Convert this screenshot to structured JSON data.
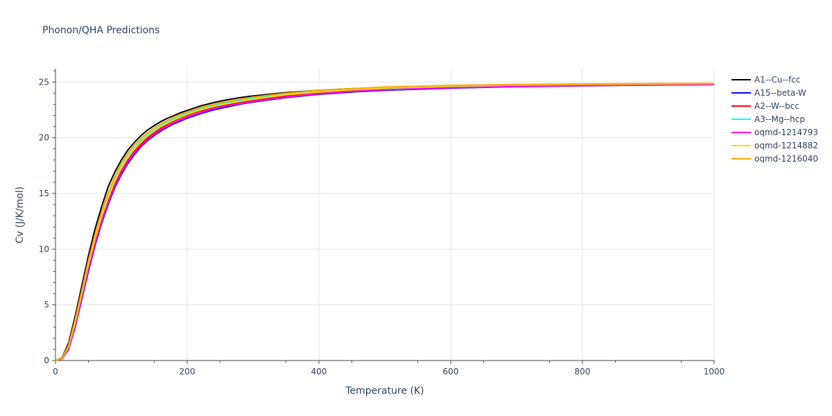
{
  "chart_data": {
    "type": "line",
    "title": "Phonon/QHA Predictions",
    "xlabel": "Temperature (K)",
    "ylabel": "Cv (J/K/mol)",
    "xlim": [
      0,
      1000
    ],
    "ylim": [
      0,
      26.2
    ],
    "x_ticks": [
      0,
      200,
      400,
      600,
      800,
      1000
    ],
    "y_ticks": [
      0,
      5,
      10,
      15,
      20,
      25
    ],
    "grid": true,
    "legend_position": "right",
    "x": [
      0,
      10,
      20,
      30,
      40,
      50,
      60,
      70,
      80,
      90,
      100,
      110,
      120,
      130,
      140,
      150,
      160,
      170,
      180,
      190,
      200,
      220,
      240,
      260,
      280,
      300,
      350,
      400,
      450,
      500,
      600,
      700,
      800,
      900,
      1000
    ],
    "series": [
      {
        "name": "A1--Cu--fcc",
        "color": "#000000",
        "values": [
          0,
          0.25,
          1.6,
          4.0,
          6.7,
          9.4,
          11.8,
          13.8,
          15.6,
          16.9,
          18.0,
          18.9,
          19.6,
          20.2,
          20.7,
          21.1,
          21.45,
          21.75,
          22.0,
          22.25,
          22.45,
          22.85,
          23.15,
          23.4,
          23.6,
          23.75,
          24.05,
          24.25,
          24.4,
          24.5,
          24.62,
          24.7,
          24.74,
          24.78,
          24.8
        ]
      },
      {
        "name": "A15--beta-W",
        "color": "#0000ff",
        "values": [
          0,
          0.15,
          1.0,
          3.0,
          5.5,
          8.0,
          10.3,
          12.3,
          14.0,
          15.5,
          16.7,
          17.7,
          18.5,
          19.2,
          19.75,
          20.2,
          20.6,
          20.95,
          21.25,
          21.5,
          21.75,
          22.15,
          22.5,
          22.75,
          23.0,
          23.2,
          23.6,
          23.9,
          24.1,
          24.25,
          24.45,
          24.58,
          24.66,
          24.72,
          24.76
        ]
      },
      {
        "name": "A2--W--bcc",
        "color": "#ff0000",
        "values": [
          0,
          0.17,
          1.1,
          3.2,
          5.8,
          8.3,
          10.6,
          12.6,
          14.3,
          15.8,
          17.0,
          18.0,
          18.8,
          19.45,
          20.0,
          20.45,
          20.85,
          21.2,
          21.5,
          21.75,
          22.0,
          22.4,
          22.7,
          22.95,
          23.15,
          23.35,
          23.75,
          24.0,
          24.2,
          24.35,
          24.52,
          24.62,
          24.7,
          24.75,
          24.78
        ]
      },
      {
        "name": "A3--Mg--hcp",
        "color": "#00ffff",
        "values": [
          0,
          0.2,
          1.3,
          3.5,
          6.1,
          8.7,
          11.0,
          13.0,
          14.7,
          16.2,
          17.4,
          18.35,
          19.1,
          19.75,
          20.25,
          20.7,
          21.1,
          21.4,
          21.7,
          21.95,
          22.2,
          22.6,
          22.9,
          23.15,
          23.35,
          23.55,
          23.9,
          24.12,
          24.3,
          24.42,
          24.58,
          24.67,
          24.73,
          24.77,
          24.8
        ]
      },
      {
        "name": "oqmd-1214793",
        "color": "#ff00ff",
        "values": [
          0,
          0.16,
          1.05,
          3.1,
          5.65,
          8.15,
          10.45,
          12.45,
          14.15,
          15.65,
          16.85,
          17.85,
          18.65,
          19.3,
          19.85,
          20.3,
          20.7,
          21.05,
          21.35,
          21.6,
          21.85,
          22.25,
          22.6,
          22.85,
          23.05,
          23.25,
          23.65,
          23.95,
          24.15,
          24.3,
          24.48,
          24.6,
          24.68,
          24.73,
          24.77
        ]
      },
      {
        "name": "oqmd-1214882",
        "color": "#ffd700",
        "values": [
          0,
          0.19,
          1.25,
          3.4,
          6.0,
          8.6,
          10.9,
          12.9,
          14.6,
          16.1,
          17.3,
          18.25,
          19.0,
          19.65,
          20.15,
          20.6,
          21.0,
          21.3,
          21.6,
          21.85,
          22.1,
          22.5,
          22.8,
          23.05,
          23.25,
          23.45,
          23.85,
          24.1,
          24.3,
          24.45,
          24.62,
          24.72,
          24.78,
          24.82,
          24.85
        ]
      },
      {
        "name": "oqmd-1216040",
        "color": "#ffa500",
        "values": [
          0,
          0.22,
          1.4,
          3.7,
          6.3,
          9.0,
          11.3,
          13.35,
          15.05,
          16.5,
          17.7,
          18.6,
          19.35,
          19.95,
          20.45,
          20.9,
          21.25,
          21.55,
          21.85,
          22.1,
          22.3,
          22.7,
          23.0,
          23.25,
          23.45,
          23.65,
          24.0,
          24.25,
          24.4,
          24.55,
          24.7,
          24.78,
          24.83,
          24.86,
          24.88
        ]
      }
    ]
  }
}
